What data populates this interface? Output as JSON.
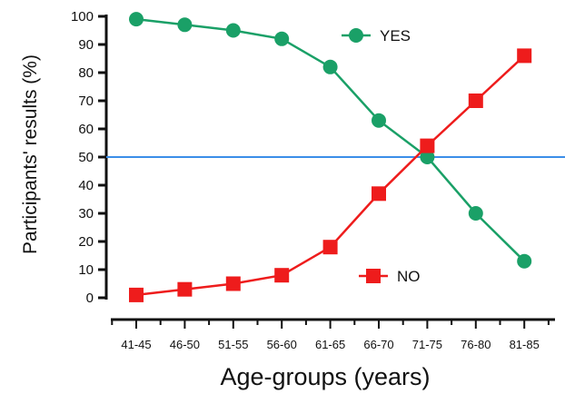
{
  "chart_data": {
    "type": "line",
    "title": "",
    "xlabel": "Age-groups (years)",
    "ylabel": "Participants' results (%)",
    "categories": [
      "41-45",
      "46-50",
      "51-55",
      "56-60",
      "61-65",
      "66-70",
      "71-75",
      "76-80",
      "81-85"
    ],
    "ylim": [
      0,
      100
    ],
    "yticks": [
      "0",
      "10",
      "20",
      "30",
      "40",
      "50",
      "60",
      "70",
      "80",
      "90",
      "100"
    ],
    "grid": false,
    "reference_line": {
      "y": 50,
      "color": "#3b8ee8"
    },
    "series": [
      {
        "name": "YES",
        "marker": "circle",
        "color": "#1aa067",
        "values": [
          99,
          97,
          95,
          92,
          82,
          63,
          50,
          30,
          13
        ]
      },
      {
        "name": "NO",
        "marker": "square",
        "color": "#ee1c1c",
        "values": [
          1,
          3,
          5,
          8,
          18,
          37,
          54,
          70,
          86
        ]
      }
    ]
  }
}
